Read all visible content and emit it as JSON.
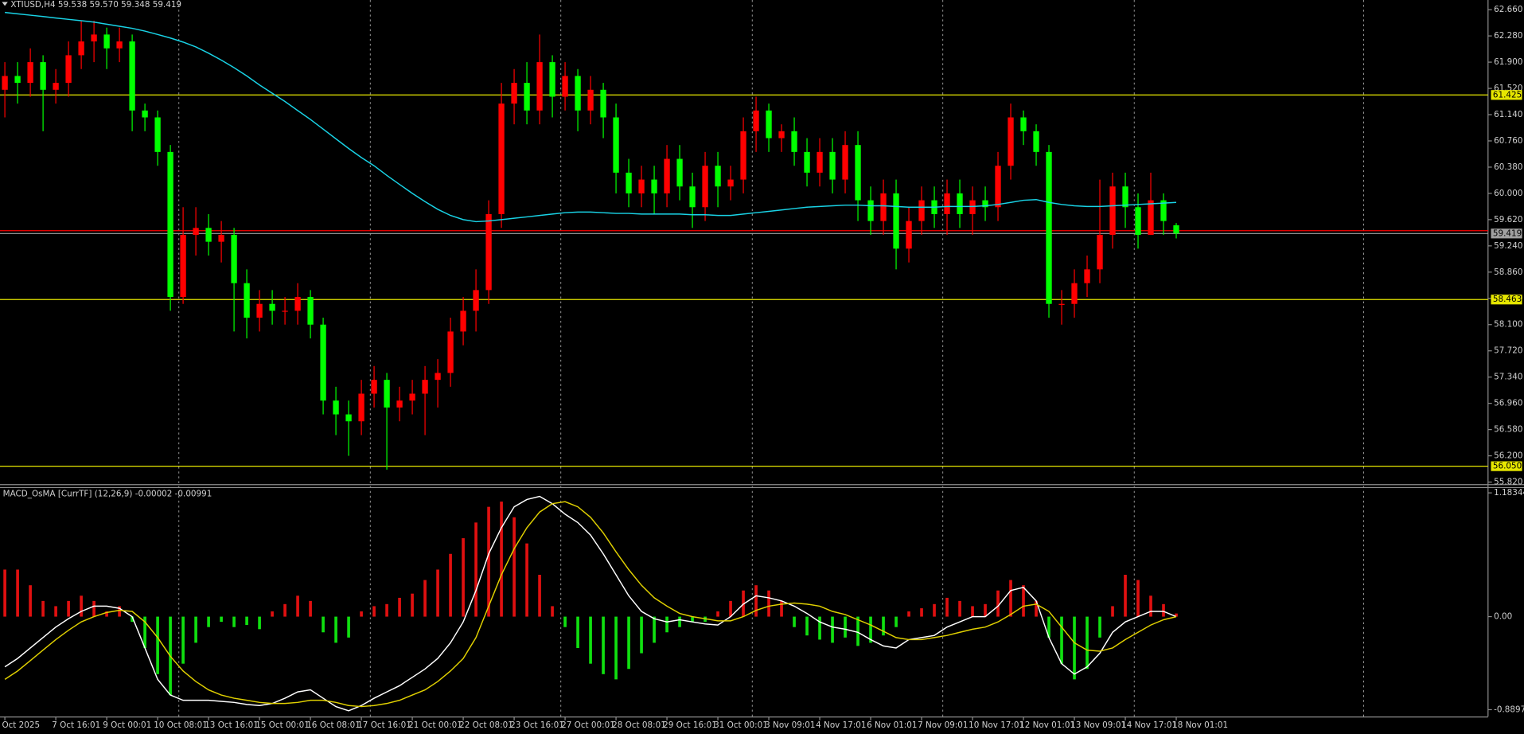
{
  "chart_data": [
    {
      "type": "candlestick",
      "title": "XTIUSD,H4 59.538 59.570 59.348 59.419",
      "categories": [
        "Oct 2025",
        null,
        null,
        null,
        "7 Oct 16:01",
        null,
        null,
        null,
        "9 Oct 00:01",
        null,
        null,
        null,
        "10 Oct 08:01",
        null,
        null,
        null,
        "13 Oct 16:01",
        null,
        null,
        null,
        "15 Oct 00:01",
        null,
        null,
        null,
        "16 Oct 08:01",
        null,
        null,
        null,
        "17 Oct 16:01",
        null,
        null,
        null,
        "21 Oct 00:01",
        null,
        null,
        null,
        "22 Oct 08:01",
        null,
        null,
        null,
        "23 Oct 16:01",
        null,
        null,
        null,
        "27 Oct 00:01",
        null,
        null,
        null,
        "28 Oct 08:01",
        null,
        null,
        null,
        "29 Oct 16:01",
        null,
        null,
        null,
        "31 Oct 00:01",
        null,
        null,
        null,
        "3 Nov 09:01",
        null,
        null,
        null,
        "4 Nov 17:01",
        null,
        null,
        null,
        "6 Nov 01:01",
        null,
        null,
        null,
        "7 Nov 09:01",
        null,
        null,
        null,
        "10 Nov 17:01",
        null,
        null,
        null,
        "12 Nov 01:01",
        null,
        null,
        null,
        "13 Nov 09:01",
        null,
        null,
        null,
        "14 Nov 17:01",
        null,
        null,
        null,
        "18 Nov 01:01"
      ],
      "open": [
        61.5,
        61.7,
        61.6,
        61.9,
        61.5,
        61.6,
        62.0,
        62.2,
        62.3,
        62.1,
        62.2,
        61.2,
        61.1,
        60.6,
        58.5,
        59.4,
        59.5,
        59.3,
        59.4,
        58.7,
        58.2,
        58.4,
        58.3,
        58.3,
        58.5,
        58.1,
        57.0,
        56.8,
        56.7,
        57.1,
        57.3,
        56.9,
        57.0,
        57.1,
        57.3,
        57.4,
        58.0,
        58.3,
        58.6,
        59.7,
        61.3,
        61.6,
        61.2,
        61.9,
        61.4,
        61.7,
        61.2,
        61.5,
        61.1,
        60.3,
        60.0,
        60.2,
        60.0,
        60.5,
        60.1,
        59.8,
        60.4,
        60.1,
        60.2,
        60.9,
        61.2,
        60.8,
        60.9,
        60.6,
        60.3,
        60.6,
        60.2,
        60.7,
        59.9,
        59.6,
        60.0,
        59.2,
        59.6,
        59.9,
        59.7,
        60.0,
        59.7,
        59.9,
        59.8,
        60.4,
        61.1,
        60.9,
        60.6,
        58.4,
        58.4,
        58.7,
        58.9,
        59.4,
        60.1,
        59.8,
        59.4,
        59.9,
        59.538
      ],
      "high": [
        61.9,
        61.9,
        62.1,
        62.0,
        61.8,
        62.2,
        62.5,
        62.5,
        62.4,
        62.4,
        62.3,
        61.3,
        61.2,
        60.7,
        59.8,
        59.8,
        59.7,
        59.6,
        59.5,
        58.9,
        58.6,
        58.6,
        58.5,
        58.7,
        58.6,
        58.2,
        57.2,
        57.0,
        57.3,
        57.5,
        57.4,
        57.2,
        57.3,
        57.5,
        57.6,
        58.2,
        58.5,
        58.9,
        59.9,
        61.6,
        61.8,
        61.9,
        62.3,
        62.0,
        61.9,
        61.8,
        61.7,
        61.6,
        61.3,
        60.5,
        60.4,
        60.4,
        60.7,
        60.7,
        60.3,
        60.6,
        60.6,
        60.4,
        61.1,
        61.4,
        61.3,
        61.0,
        61.1,
        60.8,
        60.8,
        60.8,
        60.9,
        60.9,
        60.1,
        60.2,
        60.2,
        59.8,
        60.1,
        60.1,
        60.2,
        60.2,
        60.1,
        60.1,
        60.6,
        61.3,
        61.2,
        61.0,
        60.7,
        58.6,
        58.9,
        59.1,
        60.2,
        60.3,
        60.3,
        60.0,
        60.3,
        60.0,
        59.57
      ],
      "low": [
        61.1,
        61.3,
        61.4,
        60.9,
        61.3,
        61.4,
        61.8,
        61.9,
        61.8,
        61.9,
        60.9,
        60.9,
        60.4,
        58.3,
        58.4,
        59.1,
        59.1,
        59.0,
        58.0,
        57.9,
        58.0,
        58.1,
        58.1,
        58.1,
        57.9,
        56.8,
        56.5,
        56.2,
        56.5,
        56.9,
        56.0,
        56.7,
        56.8,
        56.5,
        56.9,
        57.2,
        57.8,
        58.0,
        58.4,
        59.5,
        61.0,
        61.0,
        61.0,
        61.1,
        61.2,
        60.9,
        61.0,
        60.8,
        60.0,
        59.8,
        59.8,
        59.7,
        59.8,
        59.9,
        59.5,
        59.6,
        59.8,
        59.9,
        60.0,
        60.6,
        60.6,
        60.6,
        60.4,
        60.1,
        60.1,
        60.0,
        60.0,
        59.6,
        59.4,
        59.4,
        58.9,
        59.0,
        59.4,
        59.5,
        59.4,
        59.5,
        59.4,
        59.6,
        59.6,
        60.2,
        60.7,
        60.4,
        58.2,
        58.1,
        58.2,
        58.5,
        58.7,
        59.2,
        59.5,
        59.2,
        59.4,
        59.4,
        59.348
      ],
      "close": [
        61.7,
        61.6,
        61.9,
        61.5,
        61.6,
        62.0,
        62.2,
        62.3,
        62.1,
        62.2,
        61.2,
        61.1,
        60.6,
        58.5,
        59.4,
        59.5,
        59.3,
        59.4,
        58.7,
        58.2,
        58.4,
        58.3,
        58.3,
        58.5,
        58.1,
        57.0,
        56.8,
        56.7,
        57.1,
        57.3,
        56.9,
        57.0,
        57.1,
        57.3,
        57.4,
        58.0,
        58.3,
        58.6,
        59.7,
        61.3,
        61.6,
        61.2,
        61.9,
        61.4,
        61.7,
        61.2,
        61.5,
        61.1,
        60.3,
        60.0,
        60.2,
        60.0,
        60.5,
        60.1,
        59.8,
        60.4,
        60.1,
        60.2,
        60.9,
        61.2,
        60.8,
        60.9,
        60.6,
        60.3,
        60.6,
        60.2,
        60.7,
        59.9,
        59.6,
        60.0,
        59.2,
        59.6,
        59.9,
        59.7,
        60.0,
        59.7,
        59.9,
        59.8,
        60.4,
        61.1,
        60.9,
        60.6,
        58.4,
        58.4,
        58.7,
        58.9,
        59.4,
        60.1,
        59.8,
        59.4,
        59.9,
        59.6,
        59.419
      ],
      "up_color": "#ff0000",
      "down_color": "#00ff00",
      "ma": {
        "color": "#19d3e6",
        "values": [
          62.62,
          62.6,
          62.58,
          62.56,
          62.54,
          62.52,
          62.5,
          62.48,
          62.45,
          62.42,
          62.39,
          62.35,
          62.3,
          62.25,
          62.19,
          62.12,
          62.03,
          61.93,
          61.82,
          61.7,
          61.57,
          61.45,
          61.33,
          61.2,
          61.07,
          60.93,
          60.79,
          60.65,
          60.52,
          60.4,
          60.26,
          60.13,
          60.0,
          59.88,
          59.77,
          59.68,
          59.62,
          59.59,
          59.6,
          59.62,
          59.64,
          59.66,
          59.68,
          59.7,
          59.72,
          59.73,
          59.73,
          59.72,
          59.71,
          59.71,
          59.7,
          59.7,
          59.7,
          59.7,
          59.69,
          59.69,
          59.68,
          59.68,
          59.7,
          59.72,
          59.74,
          59.76,
          59.78,
          59.8,
          59.81,
          59.82,
          59.83,
          59.83,
          59.82,
          59.82,
          59.81,
          59.8,
          59.8,
          59.8,
          59.81,
          59.81,
          59.81,
          59.82,
          59.84,
          59.87,
          59.9,
          59.91,
          59.87,
          59.84,
          59.82,
          59.81,
          59.81,
          59.82,
          59.83,
          59.84,
          59.85,
          59.86,
          59.87
        ]
      },
      "levels": [
        {
          "price": 61.425,
          "color": "#e6e600",
          "price_tag": true
        },
        {
          "price": 58.463,
          "color": "#e6e600",
          "price_tag": true
        },
        {
          "price": {
            "value": 56.05,
            "label": "56.050"
          },
          "color": "#e6e600",
          "price_tag": true
        },
        {
          "price": 59.46,
          "color": "#ff0000",
          "price_tag": false
        },
        {
          "price": 59.419,
          "color": "#a0a0a0",
          "price_tag": true
        }
      ],
      "ylim": [
        55.79,
        62.8
      ],
      "yticks": [
        {
          "value": 62.66,
          "label": "62.660"
        },
        {
          "value": 62.28,
          "label": "62.280"
        },
        {
          "value": 61.9,
          "label": "61.900"
        },
        {
          "value": 61.52,
          "label": "61.520"
        },
        {
          "value": 61.14,
          "label": "61.140"
        },
        {
          "value": 60.76,
          "label": "60.760"
        },
        {
          "value": 60.38,
          "label": "60.380"
        },
        {
          "value": 60.0,
          "label": "60.000"
        },
        {
          "value": 59.62,
          "label": "59.620"
        },
        {
          "value": 59.24,
          "label": "59.240"
        },
        {
          "value": 58.86,
          "label": "58.860"
        },
        {
          "value": 58.48,
          "label": "58.480"
        },
        {
          "value": 58.1,
          "label": "58.100"
        },
        {
          "value": 57.72,
          "label": "57.720"
        },
        {
          "value": 57.34,
          "label": "57.340"
        },
        {
          "value": 56.96,
          "label": "56.960"
        },
        {
          "value": 56.58,
          "label": "56.580"
        },
        {
          "value": 56.2,
          "label": "56.200"
        },
        {
          "value": 55.82,
          "label": "55.820"
        }
      ]
    },
    {
      "type": "bar",
      "title": "MACD_OsMA [CurrTF] (12,26,9) -0.00002 -0.00991",
      "values": [
        0.45,
        0.45,
        0.3,
        0.15,
        0.1,
        0.15,
        0.2,
        0.15,
        0.05,
        0.1,
        -0.05,
        -0.3,
        -0.55,
        -0.75,
        -0.45,
        -0.25,
        -0.1,
        -0.05,
        -0.1,
        -0.08,
        -0.12,
        0.05,
        0.12,
        0.2,
        0.15,
        -0.15,
        -0.25,
        -0.2,
        0.05,
        0.1,
        0.12,
        0.18,
        0.22,
        0.35,
        0.45,
        0.6,
        0.75,
        0.9,
        1.05,
        1.1,
        0.95,
        0.7,
        0.4,
        0.1,
        -0.1,
        -0.3,
        -0.45,
        -0.55,
        -0.6,
        -0.5,
        -0.35,
        -0.25,
        -0.15,
        -0.1,
        -0.05,
        -0.05,
        0.05,
        0.15,
        0.25,
        0.3,
        0.25,
        0.15,
        -0.1,
        -0.18,
        -0.22,
        -0.25,
        -0.2,
        -0.28,
        -0.25,
        -0.18,
        -0.1,
        0.05,
        0.08,
        0.12,
        0.18,
        0.15,
        0.1,
        0.12,
        0.25,
        0.35,
        0.3,
        0.15,
        -0.2,
        -0.45,
        -0.6,
        -0.5,
        -0.2,
        0.1,
        0.4,
        0.35,
        0.2,
        0.12,
        0.03
      ],
      "positive_color": "#e01010",
      "negative_color": "#10e010",
      "lines": [
        {
          "color": "#ffffff",
          "values": [
            -0.48,
            -0.4,
            -0.3,
            -0.2,
            -0.1,
            -0.02,
            0.05,
            0.1,
            0.1,
            0.08,
            0.0,
            -0.3,
            -0.6,
            -0.75,
            -0.8,
            -0.8,
            -0.8,
            -0.81,
            -0.82,
            -0.84,
            -0.85,
            -0.83,
            -0.78,
            -0.72,
            -0.7,
            -0.78,
            -0.86,
            -0.9,
            -0.85,
            -0.78,
            -0.72,
            -0.66,
            -0.58,
            -0.5,
            -0.4,
            -0.25,
            -0.05,
            0.25,
            0.6,
            0.85,
            1.05,
            1.12,
            1.15,
            1.08,
            0.98,
            0.9,
            0.78,
            0.6,
            0.4,
            0.2,
            0.05,
            -0.02,
            -0.05,
            -0.03,
            -0.05,
            -0.07,
            -0.08,
            0.0,
            0.12,
            0.2,
            0.18,
            0.15,
            0.1,
            0.03,
            -0.05,
            -0.1,
            -0.12,
            -0.15,
            -0.22,
            -0.28,
            -0.3,
            -0.22,
            -0.2,
            -0.18,
            -0.1,
            -0.05,
            0.0,
            0.0,
            0.1,
            0.25,
            0.28,
            0.15,
            -0.2,
            -0.45,
            -0.55,
            -0.48,
            -0.35,
            -0.15,
            -0.05,
            0.0,
            0.05,
            0.05,
            0.0
          ]
        },
        {
          "color": "#e0d000",
          "values": [
            -0.6,
            -0.52,
            -0.42,
            -0.32,
            -0.22,
            -0.13,
            -0.05,
            0.0,
            0.04,
            0.06,
            0.05,
            -0.05,
            -0.2,
            -0.38,
            -0.52,
            -0.62,
            -0.7,
            -0.75,
            -0.78,
            -0.8,
            -0.82,
            -0.83,
            -0.83,
            -0.82,
            -0.8,
            -0.8,
            -0.82,
            -0.85,
            -0.86,
            -0.85,
            -0.83,
            -0.8,
            -0.75,
            -0.7,
            -0.62,
            -0.52,
            -0.4,
            -0.2,
            0.1,
            0.4,
            0.65,
            0.85,
            1.0,
            1.08,
            1.1,
            1.05,
            0.95,
            0.8,
            0.62,
            0.45,
            0.3,
            0.18,
            0.1,
            0.03,
            0.0,
            -0.02,
            -0.04,
            -0.04,
            0.0,
            0.06,
            0.1,
            0.12,
            0.13,
            0.12,
            0.1,
            0.05,
            0.02,
            -0.03,
            -0.08,
            -0.14,
            -0.2,
            -0.22,
            -0.22,
            -0.2,
            -0.18,
            -0.15,
            -0.12,
            -0.1,
            -0.05,
            0.02,
            0.1,
            0.12,
            0.05,
            -0.1,
            -0.25,
            -0.32,
            -0.33,
            -0.3,
            -0.22,
            -0.15,
            -0.08,
            -0.03,
            0.0
          ]
        }
      ],
      "ylim": [
        -0.955,
        1.239
      ],
      "yticks": [
        1.18344,
        {
          "value": 0,
          "label": "0.00"
        },
        -0.88977
      ]
    }
  ]
}
